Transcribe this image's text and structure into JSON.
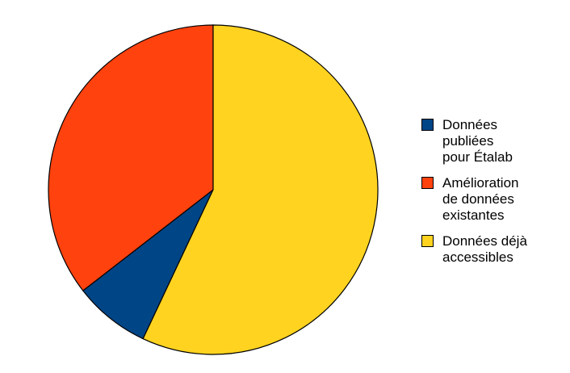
{
  "chart_data": {
    "type": "pie",
    "categories": [
      "Données\npubliées\npour Étalab",
      "Amélioration\nde données\nexistantes",
      "Données déjà\naccessibles"
    ],
    "values": [
      7.5,
      35.5,
      57
    ],
    "colors": [
      "#004586",
      "#ff420e",
      "#ffd320"
    ],
    "legend": "right"
  }
}
